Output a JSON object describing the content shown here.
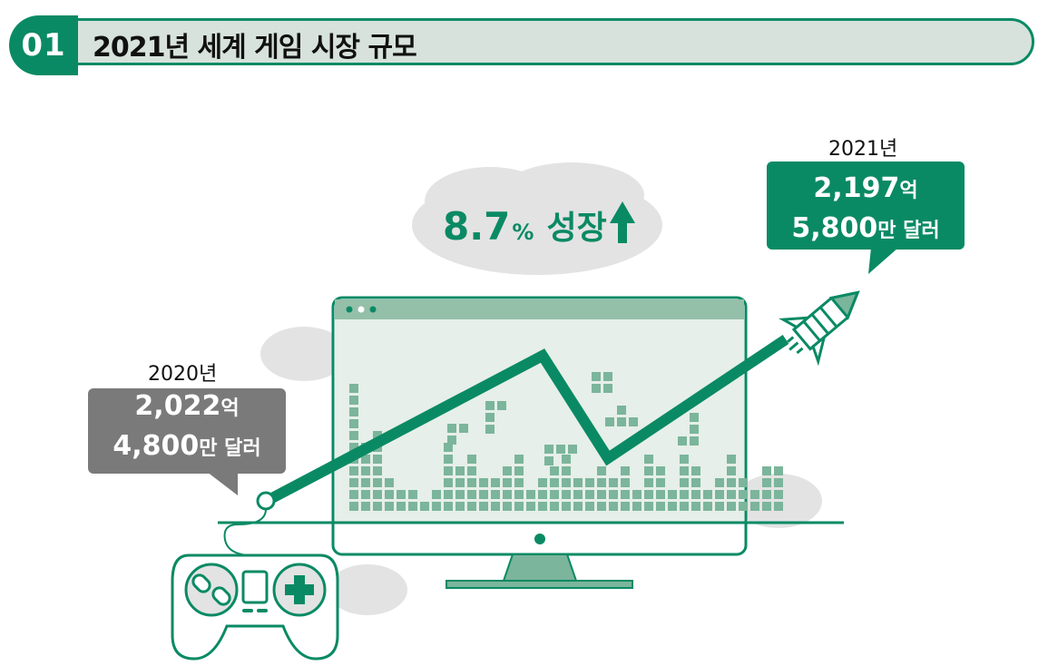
{
  "header": {
    "number": "01",
    "title": "2021년 세계 게임 시장 규모"
  },
  "growth": {
    "value": "8.7",
    "unit": "%",
    "label": "성장",
    "arrow_icon": "arrow-up-icon"
  },
  "chart_data": {
    "type": "line",
    "title": "2021년 세계 게임 시장 규모",
    "x": [
      "2020년",
      "2021년"
    ],
    "series": [
      {
        "values": [
          2022.48,
          2197.58
        ]
      }
    ],
    "annotations": [
      {
        "year": "2020년",
        "value_line": "2,022",
        "value_unit": "억",
        "sub_line": "4,800",
        "sub_unit": "만 달러"
      },
      {
        "year": "2021년",
        "value_line": "2,197",
        "value_unit": "억",
        "sub_line": "5,800",
        "sub_unit": "만 달러"
      }
    ],
    "growth_rate_percent": 8.7
  },
  "colors": {
    "accent": "#0a8a64",
    "header_bg": "#d7e2dc",
    "grey_callout": "#7a7a7a",
    "screen_bg": "#e6efe9",
    "pixel": "#7bb59b"
  }
}
